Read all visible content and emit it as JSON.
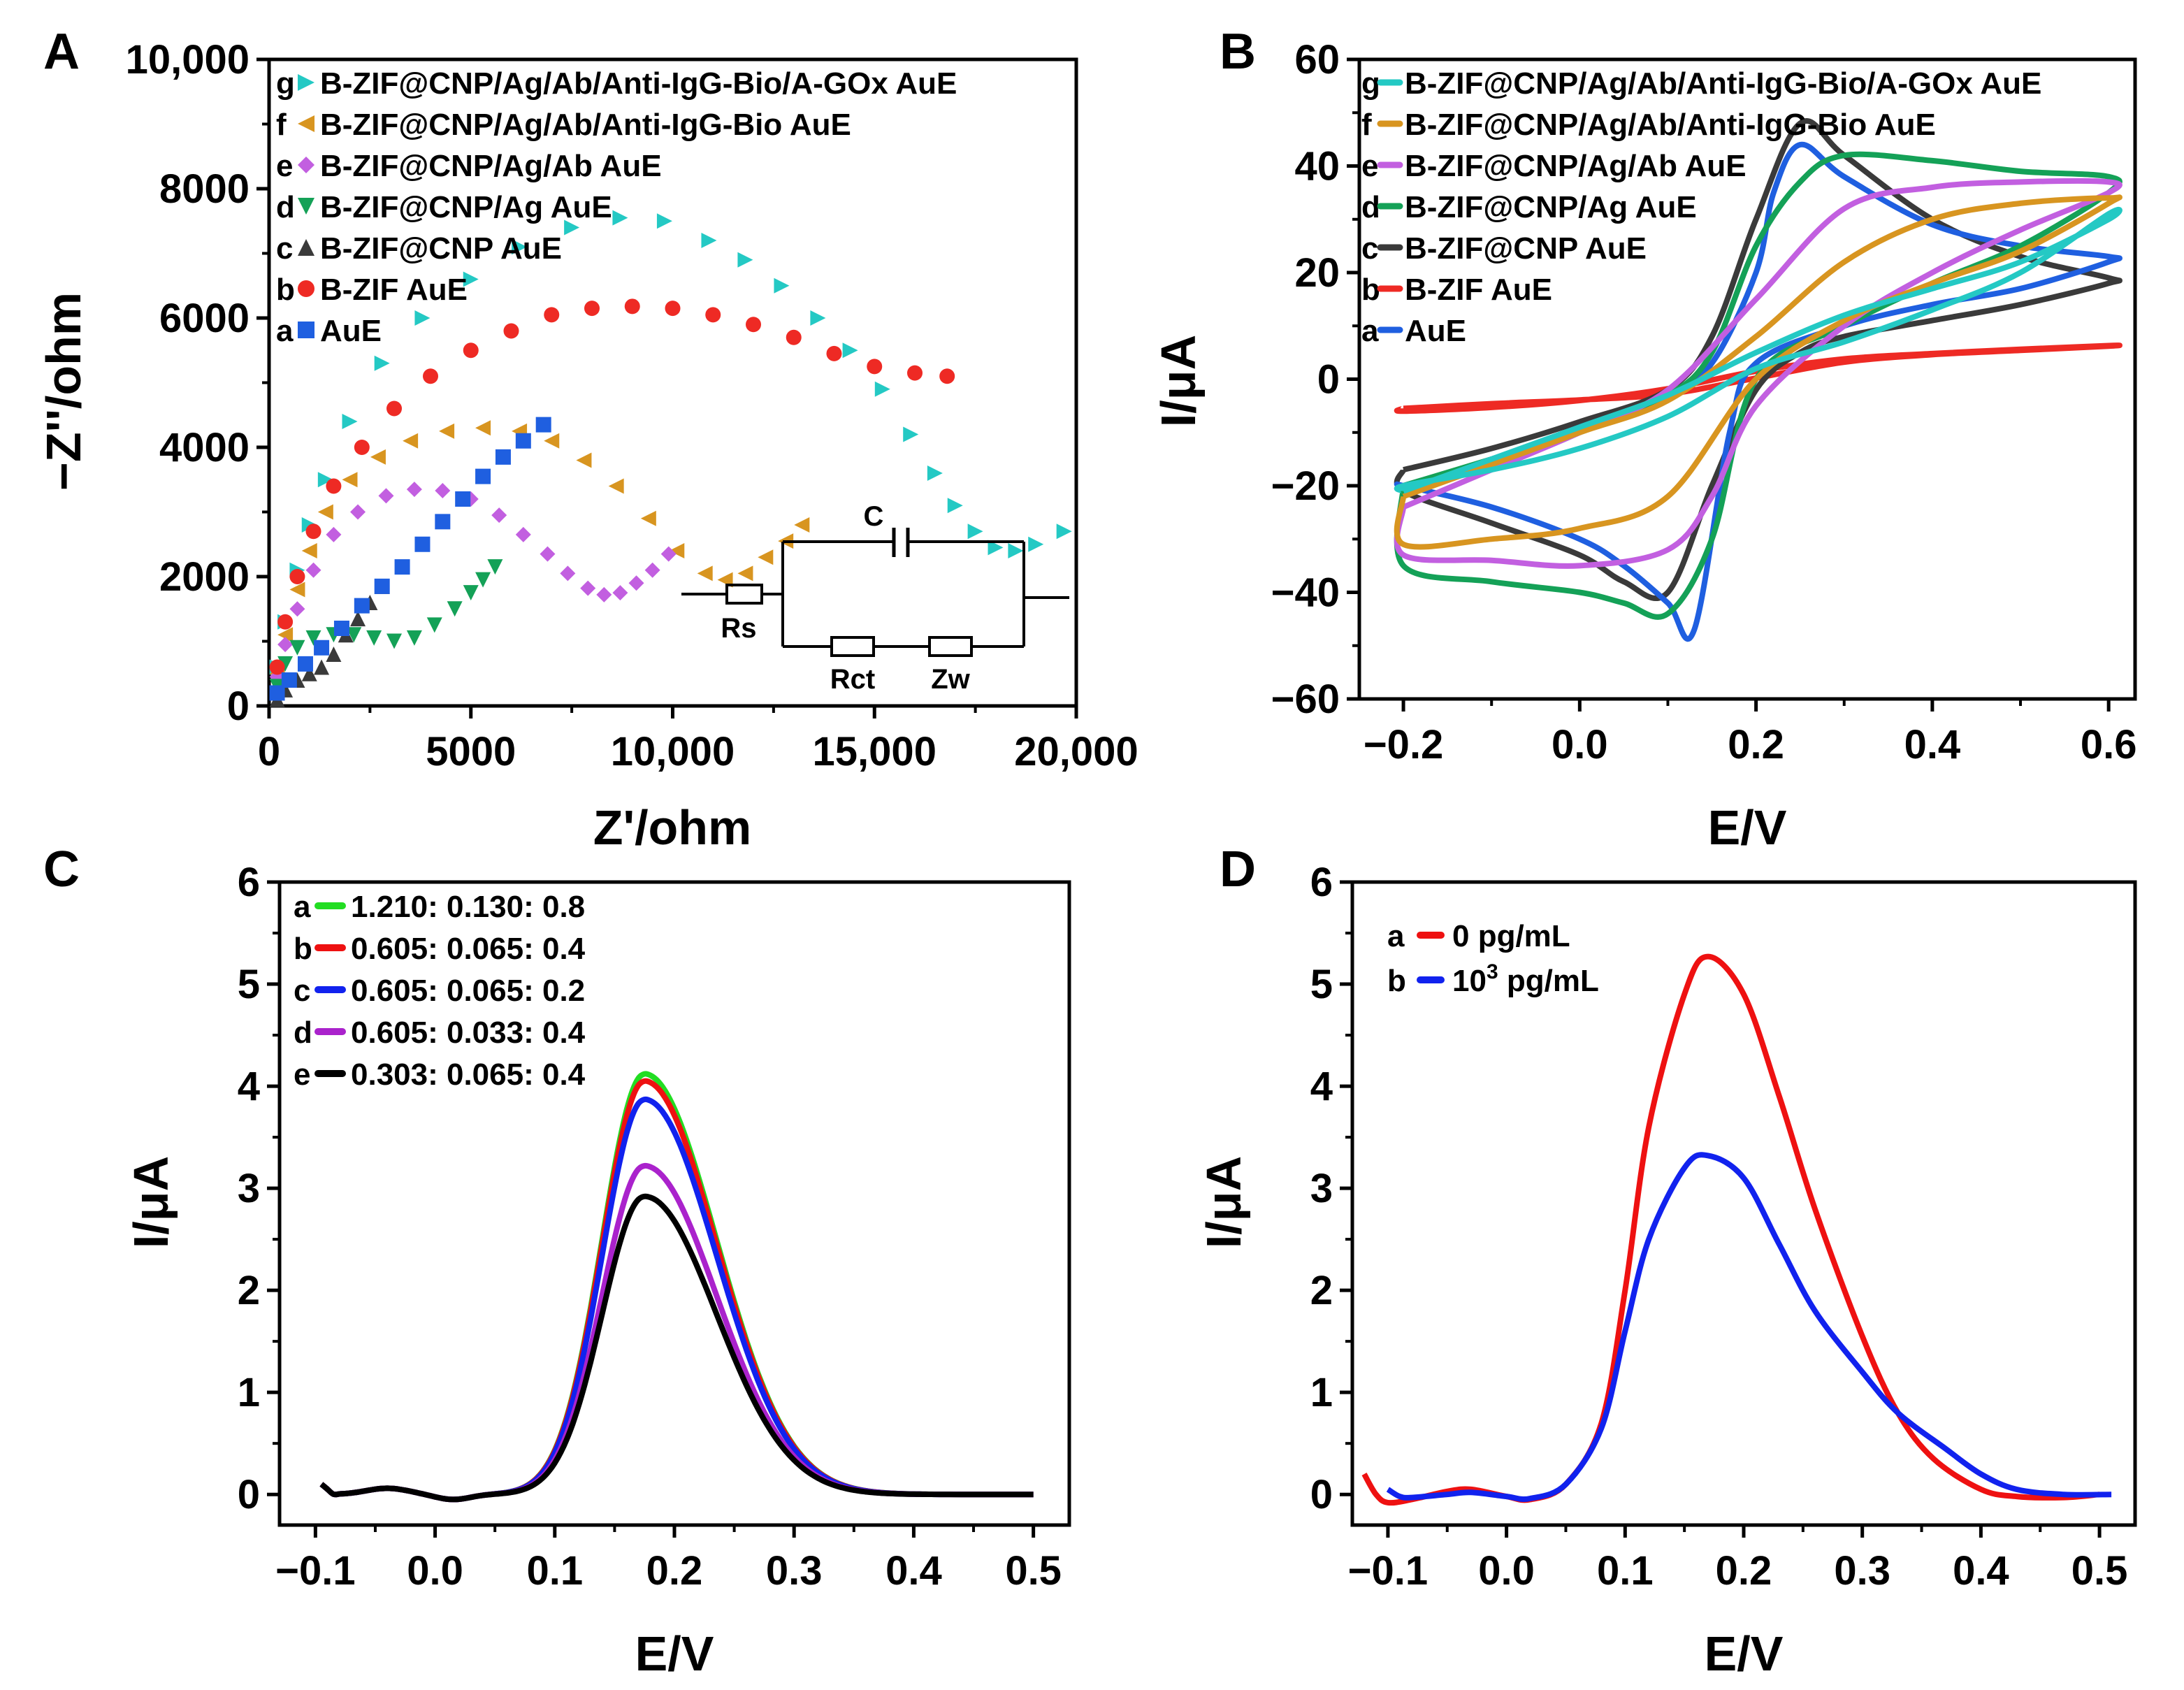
{
  "colors": {
    "AuE": "#1f5fe0",
    "B-ZIF": "#ee2a24",
    "B-ZIF@CNP": "#3a3a3a",
    "B-ZIF@CNP/Ag": "#14a157",
    "B-ZIF@CNP/Ag/Ab": "#c25fe0",
    "B-ZIF@CNP/Ag/Ab/Anti-IgG-Bio": "#d89520",
    "B-ZIF@CNP/Ag/Ab/Anti-IgG-Bio/A-GOx": "#24c9c4",
    "green": "#22dd22",
    "red": "#ee1111",
    "blue": "#1122ee",
    "purple": "#aa22cc",
    "black": "#000000"
  },
  "chart_data": [
    {
      "panel": "A",
      "type": "scatter",
      "xlabel": "Z'/ohm",
      "ylabel": "−Z''/ohm",
      "xlim": [
        0,
        20000
      ],
      "ylim": [
        0,
        10000
      ],
      "xticks": [
        "0",
        "5000",
        "10,000",
        "15,000",
        "20,000"
      ],
      "yticks": [
        "0",
        "2000",
        "4000",
        "6000",
        "8000",
        "10,000"
      ],
      "legend": [
        {
          "key": "g",
          "label": "B-ZIF@CNP/Ag/Ab/Anti-IgG-Bio/A-GOx AuE",
          "marker": "triangle-right",
          "color": "#24c9c4"
        },
        {
          "key": "f",
          "label": "B-ZIF@CNP/Ag/Ab/Anti-IgG-Bio AuE",
          "marker": "triangle-left",
          "color": "#d89520"
        },
        {
          "key": "e",
          "label": "B-ZIF@CNP/Ag/Ab AuE",
          "marker": "diamond",
          "color": "#c25fe0"
        },
        {
          "key": "d",
          "label": "B-ZIF@CNP/Ag AuE",
          "marker": "triangle-down",
          "color": "#14a157"
        },
        {
          "key": "c",
          "label": "B-ZIF@CNP AuE",
          "marker": "triangle-up",
          "color": "#3a3a3a"
        },
        {
          "key": "b",
          "label": "B-ZIF AuE",
          "marker": "circle",
          "color": "#ee2a24"
        },
        {
          "key": "a",
          "label": "AuE",
          "marker": "square",
          "color": "#1f5fe0"
        }
      ],
      "inset_circuit": {
        "labels": [
          "C",
          "Rs",
          "Rct",
          "Zw"
        ]
      },
      "series": [
        {
          "name": "g",
          "x": [
            200,
            400,
            700,
            1000,
            1400,
            2000,
            2800,
            3800,
            5000,
            6200,
            7500,
            8700,
            9800,
            10900,
            11800,
            12700,
            13600,
            14400,
            15200,
            15900,
            16500,
            17000,
            17500,
            18000,
            18500,
            19000,
            19700
          ],
          "y": [
            600,
            1300,
            2100,
            2800,
            3500,
            4400,
            5300,
            6000,
            6600,
            7100,
            7400,
            7550,
            7500,
            7200,
            6900,
            6500,
            6000,
            5500,
            4900,
            4200,
            3600,
            3100,
            2700,
            2450,
            2400,
            2500,
            2700
          ]
        },
        {
          "name": "f",
          "x": [
            200,
            400,
            700,
            1000,
            1400,
            2000,
            2700,
            3500,
            4400,
            5300,
            6200,
            7000,
            7800,
            8600,
            9400,
            10100,
            10800,
            11300,
            11800,
            12300,
            12800,
            13200
          ],
          "y": [
            500,
            1100,
            1800,
            2400,
            3000,
            3500,
            3850,
            4100,
            4250,
            4300,
            4250,
            4100,
            3800,
            3400,
            2900,
            2400,
            2050,
            1950,
            2050,
            2300,
            2550,
            2800
          ]
        },
        {
          "name": "e",
          "x": [
            200,
            400,
            700,
            1100,
            1600,
            2200,
            2900,
            3600,
            4300,
            5000,
            5700,
            6300,
            6900,
            7400,
            7900,
            8300,
            8700,
            9100,
            9500,
            9900
          ],
          "y": [
            450,
            950,
            1500,
            2100,
            2650,
            3000,
            3250,
            3350,
            3330,
            3200,
            2950,
            2650,
            2350,
            2050,
            1820,
            1720,
            1750,
            1900,
            2100,
            2350
          ]
        },
        {
          "name": "d",
          "x": [
            200,
            400,
            700,
            1100,
            1600,
            2100,
            2600,
            3100,
            3600,
            4100,
            4600,
            5000,
            5300,
            5600
          ],
          "y": [
            300,
            650,
            900,
            1050,
            1100,
            1100,
            1050,
            1000,
            1050,
            1250,
            1500,
            1750,
            1950,
            2150
          ]
        },
        {
          "name": "c",
          "x": [
            200,
            400,
            700,
            1000,
            1300,
            1600,
            1900,
            2200,
            2500,
            2800
          ],
          "y": [
            100,
            250,
            400,
            500,
            600,
            800,
            1100,
            1350,
            1600,
            1850
          ]
        },
        {
          "name": "b",
          "x": [
            200,
            400,
            700,
            1100,
            1600,
            2300,
            3100,
            4000,
            5000,
            6000,
            7000,
            8000,
            9000,
            10000,
            11000,
            12000,
            13000,
            14000,
            15000,
            16000,
            16800
          ],
          "y": [
            600,
            1300,
            2000,
            2700,
            3400,
            4000,
            4600,
            5100,
            5500,
            5800,
            6050,
            6150,
            6180,
            6150,
            6050,
            5900,
            5700,
            5450,
            5250,
            5150,
            5100
          ]
        },
        {
          "name": "a",
          "x": [
            200,
            500,
            900,
            1300,
            1800,
            2300,
            2800,
            3300,
            3800,
            4300,
            4800,
            5300,
            5800,
            6300,
            6800
          ],
          "y": [
            200,
            400,
            650,
            900,
            1200,
            1550,
            1850,
            2150,
            2500,
            2850,
            3200,
            3550,
            3850,
            4100,
            4350
          ]
        }
      ]
    },
    {
      "panel": "B",
      "type": "line",
      "xlabel": "E/V",
      "ylabel": "I/μA",
      "xlim": [
        -0.25,
        0.63
      ],
      "ylim": [
        -60,
        60
      ],
      "xticks": [
        "−0.2",
        "0.0",
        "0.2",
        "0.4",
        "0.6"
      ],
      "yticks": [
        "−60",
        "−40",
        "−20",
        "0",
        "20",
        "40",
        "60"
      ],
      "legend": [
        {
          "key": "g",
          "label": "B-ZIF@CNP/Ag/Ab/Anti-IgG-Bio/A-GOx AuE",
          "color": "#24c9c4"
        },
        {
          "key": "f",
          "label": "B-ZIF@CNP/Ag/Ab/Anti-IgG-Bio AuE",
          "color": "#d89520"
        },
        {
          "key": "e",
          "label": "B-ZIF@CNP/Ag/Ab AuE",
          "color": "#c25fe0"
        },
        {
          "key": "d",
          "label": "B-ZIF@CNP/Ag AuE",
          "color": "#14a157"
        },
        {
          "key": "c",
          "label": "B-ZIF@CNP AuE",
          "color": "#3a3a3a"
        },
        {
          "key": "b",
          "label": "B-ZIF AuE",
          "color": "#ee2a24"
        },
        {
          "key": "a",
          "label": "AuE",
          "color": "#1f5fe0"
        }
      ],
      "series": [
        {
          "name": "b",
          "x": [
            -0.2,
            -0.1,
            0.0,
            0.1,
            0.2,
            0.3,
            0.4,
            0.5,
            0.6,
            0.6,
            0.5,
            0.4,
            0.3,
            0.2,
            0.1,
            0.0,
            -0.1,
            -0.2,
            -0.2
          ],
          "y": [
            -5.5,
            -4.6,
            -3.9,
            -2.8,
            0.2,
            3.2,
            4.6,
            5.4,
            6.2,
            6.3,
            5.6,
            4.8,
            3.8,
            1.5,
            -1.8,
            -4.0,
            -5.3,
            -6.0,
            -5.5
          ]
        },
        {
          "name": "c",
          "x": [
            -0.2,
            -0.1,
            0.0,
            0.1,
            0.15,
            0.2,
            0.25,
            0.3,
            0.4,
            0.5,
            0.6,
            0.6,
            0.5,
            0.4,
            0.3,
            0.25,
            0.2,
            0.15,
            0.1,
            0.05,
            0.0,
            -0.1,
            -0.2,
            -0.2
          ],
          "y": [
            -17,
            -13,
            -8,
            -2,
            8,
            30,
            48,
            42,
            30,
            23,
            19,
            18,
            14,
            11,
            8,
            5,
            -2,
            -20,
            -40,
            -38,
            -33,
            -27,
            -21,
            -17
          ]
        },
        {
          "name": "a",
          "x": [
            -0.2,
            -0.1,
            0.0,
            0.1,
            0.15,
            0.2,
            0.22,
            0.25,
            0.3,
            0.4,
            0.5,
            0.6,
            0.6,
            0.5,
            0.4,
            0.3,
            0.2,
            0.17,
            0.13,
            0.1,
            0.05,
            0.0,
            -0.1,
            -0.2,
            -0.2
          ],
          "y": [
            -20,
            -15,
            -9,
            -3,
            3,
            20,
            35,
            44,
            38,
            29,
            25,
            23,
            22,
            17,
            14,
            10,
            3,
            -10,
            -47,
            -42,
            -35,
            -30,
            -24,
            -20,
            -20
          ]
        },
        {
          "name": "d",
          "x": [
            -0.2,
            -0.1,
            0.0,
            0.1,
            0.15,
            0.2,
            0.25,
            0.3,
            0.4,
            0.5,
            0.6,
            0.6,
            0.5,
            0.4,
            0.3,
            0.2,
            0.15,
            0.1,
            0.05,
            0.0,
            -0.1,
            -0.2,
            -0.2
          ],
          "y": [
            -20,
            -15,
            -10,
            -3,
            5,
            25,
            37,
            42,
            41,
            39,
            38,
            35,
            25,
            18,
            10,
            0,
            -30,
            -44,
            -42,
            -40,
            -38,
            -35,
            -20
          ]
        },
        {
          "name": "e",
          "x": [
            -0.2,
            -0.1,
            0.0,
            0.1,
            0.2,
            0.3,
            0.4,
            0.5,
            0.6,
            0.6,
            0.5,
            0.4,
            0.3,
            0.2,
            0.15,
            0.1,
            0.0,
            -0.1,
            -0.2,
            -0.2
          ],
          "y": [
            -24,
            -17,
            -10,
            -2,
            15,
            32,
            36,
            37,
            37,
            35,
            28,
            20,
            10,
            -5,
            -22,
            -32,
            -35,
            -34,
            -33,
            -24
          ]
        },
        {
          "name": "f",
          "x": [
            -0.2,
            -0.1,
            0.0,
            0.1,
            0.2,
            0.3,
            0.4,
            0.5,
            0.6,
            0.6,
            0.5,
            0.4,
            0.3,
            0.2,
            0.1,
            0.0,
            -0.1,
            -0.2,
            -0.2
          ],
          "y": [
            -22,
            -16,
            -10,
            -4,
            8,
            22,
            30,
            33,
            34,
            33,
            24,
            18,
            11,
            0,
            -22,
            -28,
            -30,
            -31,
            -22
          ]
        },
        {
          "name": "g",
          "x": [
            -0.2,
            -0.1,
            0.0,
            0.1,
            0.2,
            0.3,
            0.4,
            0.5,
            0.6,
            0.6,
            0.5,
            0.4,
            0.3,
            0.2,
            0.1,
            0.0,
            -0.1,
            -0.2,
            -0.2
          ],
          "y": [
            -21,
            -15,
            -9,
            -3,
            5,
            12,
            17,
            22,
            30,
            31,
            20,
            13,
            7,
            2,
            -7,
            -13,
            -17,
            -20,
            -21
          ]
        }
      ]
    },
    {
      "panel": "C",
      "type": "line",
      "xlabel": "E/V",
      "ylabel": "I/μA",
      "xlim": [
        -0.13,
        0.53
      ],
      "ylim": [
        -0.3,
        6
      ],
      "xticks": [
        "−0.1",
        "0.0",
        "0.1",
        "0.2",
        "0.3",
        "0.4",
        "0.5"
      ],
      "yticks": [
        "0",
        "1",
        "2",
        "3",
        "4",
        "5",
        "6"
      ],
      "legend": [
        {
          "key": "a",
          "label": "1.210: 0.130: 0.8",
          "color": "#22dd22"
        },
        {
          "key": "b",
          "label": "0.605: 0.065: 0.4",
          "color": "#ee1111"
        },
        {
          "key": "c",
          "label": "0.605: 0.065: 0.2",
          "color": "#1122ee"
        },
        {
          "key": "d",
          "label": "0.605: 0.033: 0.4",
          "color": "#aa22cc"
        },
        {
          "key": "e",
          "label": "0.303: 0.065: 0.4",
          "color": "#000000"
        }
      ],
      "peak_position_V": 0.175,
      "series": [
        {
          "name": "a",
          "peak": 4.12
        },
        {
          "name": "b",
          "peak": 4.05
        },
        {
          "name": "c",
          "peak": 3.87
        },
        {
          "name": "d",
          "peak": 3.22
        },
        {
          "name": "e",
          "peak": 2.92
        }
      ]
    },
    {
      "panel": "D",
      "type": "line",
      "xlabel": "E/V",
      "ylabel": "I/μA",
      "xlim": [
        -0.13,
        0.53
      ],
      "ylim": [
        -0.3,
        6
      ],
      "xticks": [
        "−0.1",
        "0.0",
        "0.1",
        "0.2",
        "0.3",
        "0.4",
        "0.5"
      ],
      "yticks": [
        "0",
        "1",
        "2",
        "3",
        "4",
        "5",
        "6"
      ],
      "legend": [
        {
          "key": "a",
          "label": "0   pg/mL",
          "color": "#ee1111"
        },
        {
          "key": "b",
          "label": "10",
          "sup": "3",
          "suffix": " pg/mL",
          "color": "#1122ee"
        }
      ],
      "series": [
        {
          "name": "a",
          "x": [
            -0.12,
            -0.11,
            -0.1,
            -0.08,
            -0.05,
            -0.03,
            0.0,
            0.02,
            0.05,
            0.08,
            0.1,
            0.12,
            0.15,
            0.17,
            0.2,
            0.23,
            0.26,
            0.3,
            0.33,
            0.36,
            0.4,
            0.43,
            0.47,
            0.5
          ],
          "y": [
            0.2,
            0.0,
            -0.08,
            -0.05,
            0.03,
            0.05,
            -0.02,
            -0.05,
            0.1,
            0.7,
            2.0,
            3.6,
            4.9,
            5.27,
            4.9,
            3.9,
            2.8,
            1.55,
            0.8,
            0.35,
            0.05,
            -0.02,
            -0.03,
            0.0
          ]
        },
        {
          "name": "b",
          "x": [
            -0.1,
            -0.09,
            -0.08,
            -0.05,
            -0.03,
            0.0,
            0.02,
            0.05,
            0.08,
            0.1,
            0.12,
            0.15,
            0.17,
            0.2,
            0.23,
            0.26,
            0.3,
            0.33,
            0.37,
            0.4,
            0.43,
            0.47,
            0.51
          ],
          "y": [
            0.05,
            -0.02,
            -0.03,
            0.0,
            0.02,
            -0.02,
            -0.04,
            0.1,
            0.65,
            1.6,
            2.5,
            3.2,
            3.32,
            3.1,
            2.45,
            1.8,
            1.2,
            0.8,
            0.45,
            0.2,
            0.05,
            0.0,
            0.0
          ]
        }
      ]
    }
  ]
}
